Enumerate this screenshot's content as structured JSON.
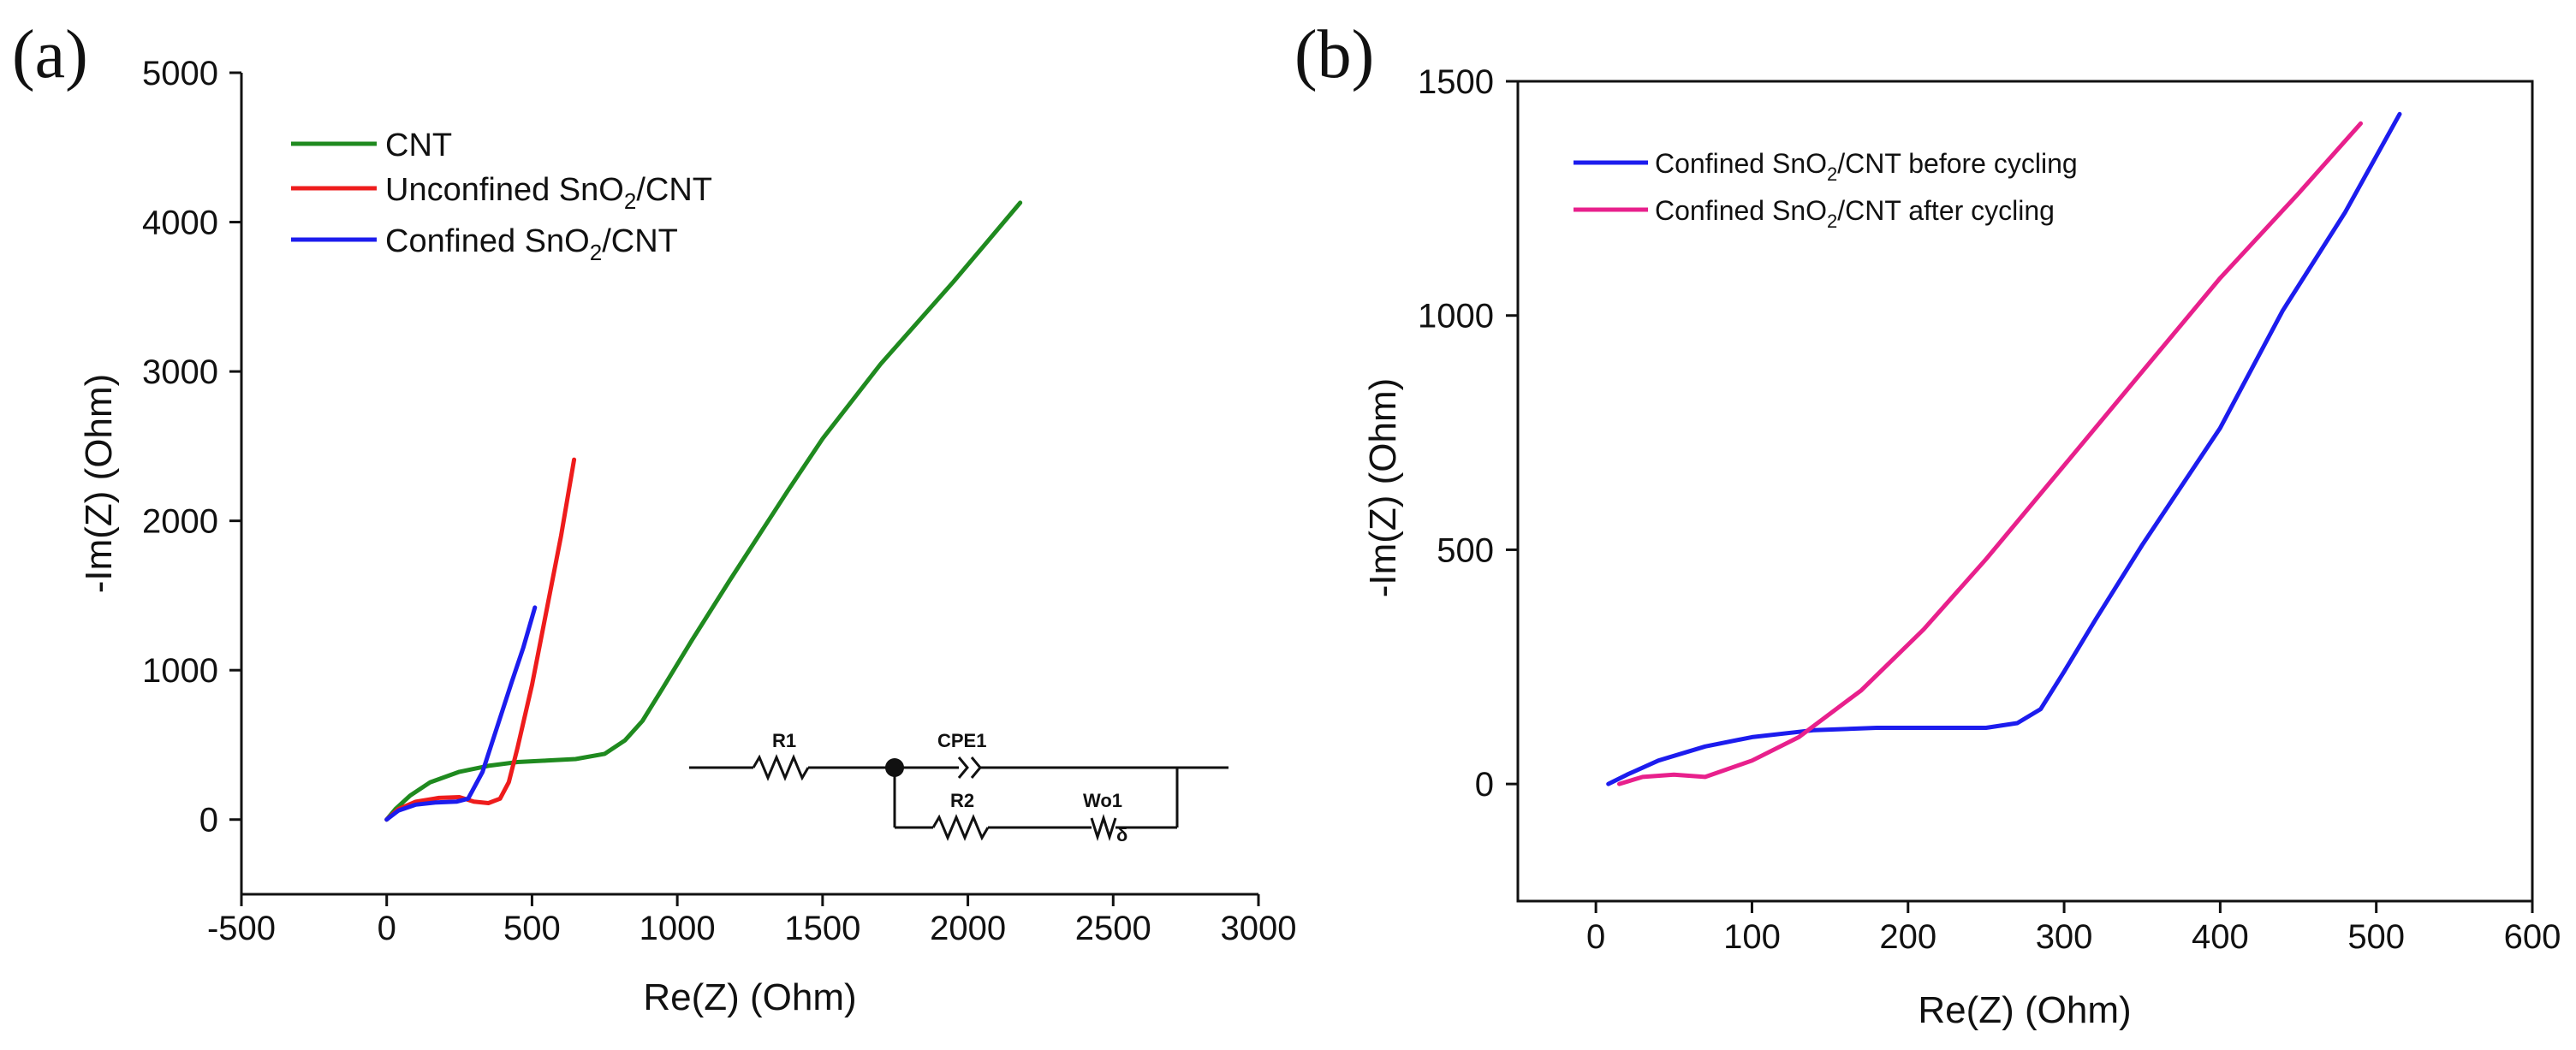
{
  "chart_data": [
    {
      "panel_label": "(a)",
      "type": "line",
      "xlabel": "Re(Z) (Ohm)",
      "ylabel": "-Im(Z) (Ohm)",
      "xlim": [
        -500,
        3000
      ],
      "ylim": [
        -500,
        5000
      ],
      "xticks": [
        -500,
        0,
        500,
        1000,
        1500,
        2000,
        2500,
        3000
      ],
      "yticks": [
        0,
        1000,
        2000,
        3000,
        4000,
        5000
      ],
      "grid": false,
      "legend_position": "top-left",
      "series": [
        {
          "name": "CNT",
          "legend_main": "CNT",
          "legend_sub": "",
          "legend_tail": "",
          "color": "#1f8a1f",
          "points": [
            [
              0,
              0
            ],
            [
              30,
              70
            ],
            [
              80,
              160
            ],
            [
              150,
              250
            ],
            [
              250,
              320
            ],
            [
              350,
              360
            ],
            [
              450,
              385
            ],
            [
              550,
              395
            ],
            [
              650,
              405
            ],
            [
              750,
              440
            ],
            [
              820,
              530
            ],
            [
              880,
              660
            ],
            [
              950,
              880
            ],
            [
              1050,
              1200
            ],
            [
              1180,
              1600
            ],
            [
              1380,
              2200
            ],
            [
              1500,
              2550
            ],
            [
              1700,
              3050
            ],
            [
              1950,
              3600
            ],
            [
              2180,
              4130
            ]
          ]
        },
        {
          "name": "Unconfined SnO2/CNT",
          "legend_main": "Unconfined SnO",
          "legend_sub": "2",
          "legend_tail": "/CNT",
          "color": "#ee1c1c",
          "points": [
            [
              0,
              0
            ],
            [
              40,
              70
            ],
            [
              100,
              120
            ],
            [
              180,
              145
            ],
            [
              250,
              150
            ],
            [
              300,
              120
            ],
            [
              350,
              110
            ],
            [
              390,
              140
            ],
            [
              420,
              250
            ],
            [
              450,
              480
            ],
            [
              500,
              900
            ],
            [
              550,
              1400
            ],
            [
              600,
              1900
            ],
            [
              645,
              2410
            ]
          ]
        },
        {
          "name": "Confined SnO2/CNT",
          "legend_main": "Confined SnO",
          "legend_sub": "2",
          "legend_tail": "/CNT",
          "color": "#1c1cee",
          "points": [
            [
              0,
              0
            ],
            [
              40,
              60
            ],
            [
              100,
              100
            ],
            [
              170,
              115
            ],
            [
              240,
              120
            ],
            [
              280,
              140
            ],
            [
              330,
              320
            ],
            [
              380,
              620
            ],
            [
              430,
              920
            ],
            [
              470,
              1150
            ],
            [
              510,
              1420
            ]
          ]
        }
      ],
      "inset": {
        "labels": [
          "R1",
          "CPE1",
          "R2",
          "Wo1"
        ],
        "subscript": "δ"
      }
    },
    {
      "panel_label": "(b)",
      "type": "line",
      "xlabel": "Re(Z) (Ohm)",
      "ylabel": "-Im(Z) (Ohm)",
      "xlim": [
        -50,
        600
      ],
      "ylim": [
        -250,
        1500
      ],
      "xticks": [
        0,
        100,
        200,
        300,
        400,
        500,
        600
      ],
      "yticks": [
        0,
        500,
        1000,
        1500
      ],
      "grid": false,
      "legend_position": "top-left",
      "series": [
        {
          "name": "Confined SnO2/CNT before cycling",
          "legend_main": "Confined SnO",
          "legend_sub": "2",
          "legend_tail": "/CNT before cycling",
          "color": "#1c1cee",
          "points": [
            [
              8,
              0
            ],
            [
              20,
              20
            ],
            [
              40,
              50
            ],
            [
              70,
              80
            ],
            [
              100,
              100
            ],
            [
              140,
              115
            ],
            [
              180,
              120
            ],
            [
              220,
              120
            ],
            [
              250,
              120
            ],
            [
              270,
              130
            ],
            [
              285,
              160
            ],
            [
              300,
              240
            ],
            [
              320,
              350
            ],
            [
              350,
              510
            ],
            [
              400,
              760
            ],
            [
              440,
              1010
            ],
            [
              480,
              1220
            ],
            [
              515,
              1430
            ]
          ]
        },
        {
          "name": "Confined SnO2/CNT after cycling",
          "legend_main": "Confined SnO",
          "legend_sub": "2",
          "legend_tail": "/CNT after cycling",
          "color": "#e8208c",
          "points": [
            [
              15,
              0
            ],
            [
              30,
              15
            ],
            [
              50,
              20
            ],
            [
              70,
              15
            ],
            [
              100,
              50
            ],
            [
              130,
              100
            ],
            [
              170,
              200
            ],
            [
              210,
              330
            ],
            [
              250,
              480
            ],
            [
              300,
              680
            ],
            [
              350,
              880
            ],
            [
              400,
              1080
            ],
            [
              450,
              1260
            ],
            [
              490,
              1410
            ]
          ]
        }
      ]
    }
  ]
}
